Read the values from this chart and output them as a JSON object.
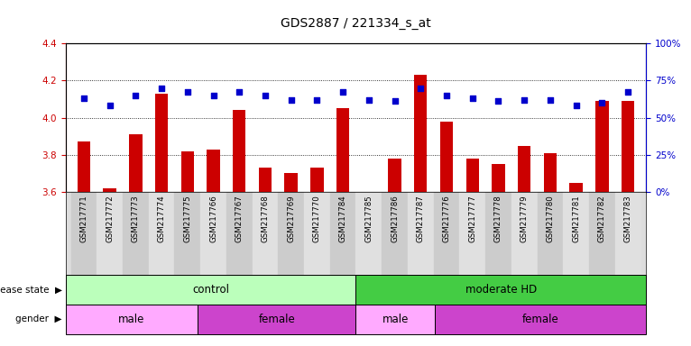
{
  "title": "GDS2887 / 221334_s_at",
  "samples": [
    "GSM217771",
    "GSM217772",
    "GSM217773",
    "GSM217774",
    "GSM217775",
    "GSM217766",
    "GSM217767",
    "GSM217768",
    "GSM217769",
    "GSM217770",
    "GSM217784",
    "GSM217785",
    "GSM217786",
    "GSM217787",
    "GSM217776",
    "GSM217777",
    "GSM217778",
    "GSM217779",
    "GSM217780",
    "GSM217781",
    "GSM217782",
    "GSM217783"
  ],
  "transformed_counts": [
    3.87,
    3.62,
    3.91,
    4.13,
    3.82,
    3.83,
    4.04,
    3.73,
    3.7,
    3.73,
    4.05,
    3.6,
    3.78,
    4.23,
    3.98,
    3.78,
    3.75,
    3.85,
    3.81,
    3.65,
    4.09,
    4.09
  ],
  "percentile_ranks": [
    63,
    58,
    65,
    70,
    67,
    65,
    67,
    65,
    62,
    62,
    67,
    62,
    61,
    70,
    65,
    63,
    61,
    62,
    62,
    58,
    60,
    67
  ],
  "ylim_left": [
    3.6,
    4.4
  ],
  "ylim_right": [
    0,
    100
  ],
  "yticks_left": [
    3.6,
    3.8,
    4.0,
    4.2,
    4.4
  ],
  "yticks_right": [
    0,
    25,
    50,
    75,
    100
  ],
  "ytick_labels_right": [
    "0%",
    "25%",
    "50%",
    "75%",
    "100%"
  ],
  "bar_color": "#cc0000",
  "dot_color": "#0000cc",
  "bar_bottom": 3.6,
  "disease_state_groups": [
    {
      "label": "control",
      "start": 0,
      "end": 11,
      "color": "#bbffbb"
    },
    {
      "label": "moderate HD",
      "start": 11,
      "end": 22,
      "color": "#44cc44"
    }
  ],
  "gender_groups": [
    {
      "label": "male",
      "start": 0,
      "end": 5,
      "color": "#ffaaff"
    },
    {
      "label": "female",
      "start": 5,
      "end": 11,
      "color": "#cc44cc"
    },
    {
      "label": "male",
      "start": 11,
      "end": 14,
      "color": "#ffaaff"
    },
    {
      "label": "female",
      "start": 14,
      "end": 22,
      "color": "#cc44cc"
    }
  ],
  "axis_label_color_left": "#cc0000",
  "axis_label_color_right": "#0000cc"
}
